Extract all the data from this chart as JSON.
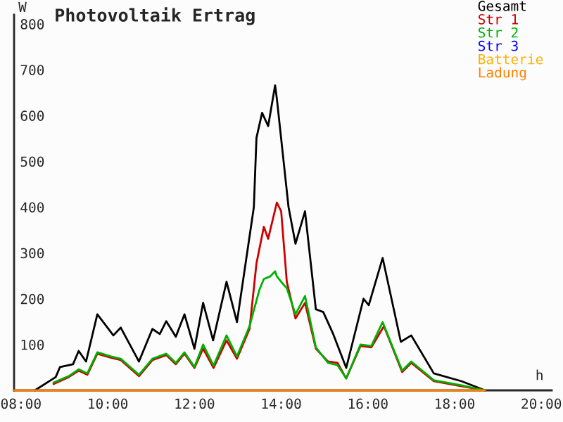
{
  "chart_data": {
    "type": "line",
    "title": "Photovoltaik Ertrag",
    "xlabel": "h",
    "ylabel": "W",
    "xlim": [
      7.84,
      20.24
    ],
    "xticks": [
      {
        "value": 8,
        "label": "08:00"
      },
      {
        "value": 10,
        "label": "10:00"
      },
      {
        "value": 12,
        "label": "12:00"
      },
      {
        "value": 14,
        "label": "14:00"
      },
      {
        "value": 16,
        "label": "16:00"
      },
      {
        "value": 18,
        "label": "18:00"
      },
      {
        "value": 20,
        "label": "20:00"
      }
    ],
    "ylim": [
      0,
      820
    ],
    "yticks": [
      100,
      200,
      300,
      400,
      500,
      600,
      700,
      800
    ],
    "grid": false,
    "legend": "top right",
    "marker": "none",
    "line_style": "solid",
    "series": [
      {
        "name": "Gesamt",
        "color": "#000000",
        "x": [
          8.32,
          8.8,
          8.9,
          9.2,
          9.33,
          9.5,
          9.76,
          10.13,
          10.3,
          10.72,
          11.03,
          11.2,
          11.35,
          11.57,
          11.77,
          12.0,
          12.2,
          12.43,
          12.74,
          12.98,
          13.37,
          13.43,
          13.56,
          13.7,
          13.86,
          13.9,
          14.17,
          14.33,
          14.55,
          14.8,
          14.97,
          15.2,
          15.5,
          15.9,
          16.02,
          16.34,
          16.76,
          17.0,
          17.52,
          18.16,
          18.7
        ],
        "values": [
          0,
          29,
          51,
          57,
          86,
          63,
          166,
          120,
          137,
          63,
          134,
          123,
          151,
          117,
          166,
          91,
          191,
          109,
          237,
          149,
          400,
          551,
          606,
          577,
          666,
          637,
          400,
          320,
          391,
          177,
          171,
          123,
          49,
          200,
          186,
          289,
          106,
          120,
          37,
          20,
          0
        ]
      },
      {
        "name": "Str 1",
        "color": "#cc0000",
        "x": [
          8.75,
          9.1,
          9.33,
          9.53,
          9.76,
          10.08,
          10.3,
          10.72,
          11.03,
          11.35,
          11.57,
          11.77,
          12.0,
          12.2,
          12.44,
          12.74,
          12.98,
          13.27,
          13.43,
          13.6,
          13.7,
          13.9,
          14.0,
          14.13,
          14.33,
          14.55,
          14.8,
          15.08,
          15.3,
          15.5,
          15.83,
          16.08,
          16.37,
          16.79,
          17.0,
          17.52,
          18.16,
          18.7
        ],
        "values": [
          14,
          29,
          43,
          34,
          80,
          71,
          66,
          31,
          66,
          77,
          57,
          80,
          49,
          91,
          49,
          109,
          69,
          134,
          277,
          357,
          331,
          410,
          391,
          237,
          157,
          191,
          91,
          63,
          60,
          26,
          97,
          94,
          140,
          40,
          60,
          20,
          9,
          0
        ]
      },
      {
        "name": "Str 2",
        "color": "#00b000",
        "x": [
          8.75,
          9.1,
          9.33,
          9.53,
          9.76,
          10.08,
          10.3,
          10.72,
          11.03,
          11.35,
          11.57,
          11.77,
          12.0,
          12.2,
          12.44,
          12.74,
          12.98,
          13.27,
          13.5,
          13.6,
          13.75,
          13.86,
          13.9,
          14.0,
          14.13,
          14.33,
          14.55,
          14.8,
          15.08,
          15.3,
          15.5,
          15.83,
          16.08,
          16.34,
          16.79,
          17.0,
          17.52,
          18.16,
          18.7
        ],
        "values": [
          17,
          31,
          46,
          37,
          83,
          74,
          69,
          34,
          69,
          80,
          60,
          83,
          51,
          100,
          54,
          120,
          74,
          140,
          220,
          243,
          249,
          260,
          249,
          237,
          223,
          166,
          206,
          94,
          60,
          55,
          26,
          100,
          97,
          149,
          43,
          63,
          22,
          11,
          0
        ]
      },
      {
        "name": "Str 3",
        "color": "#0000ff"
      },
      {
        "name": "Batterie",
        "color": "#ffb000"
      },
      {
        "name": "Ladung",
        "color": "#ff8000",
        "x": [
          7.84,
          18.7
        ],
        "values": [
          0,
          0
        ]
      }
    ]
  }
}
